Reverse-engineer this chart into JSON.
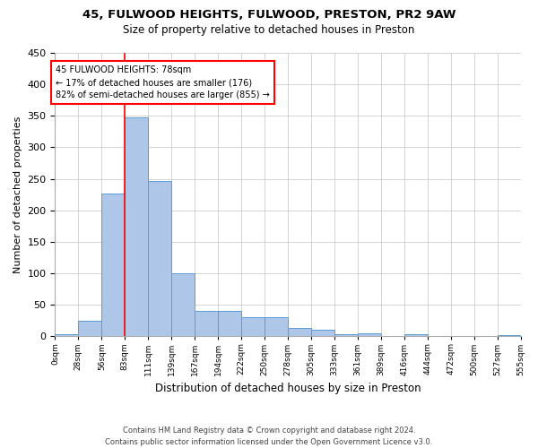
{
  "title1": "45, FULWOOD HEIGHTS, FULWOOD, PRESTON, PR2 9AW",
  "title2": "Size of property relative to detached houses in Preston",
  "xlabel": "Distribution of detached houses by size in Preston",
  "ylabel": "Number of detached properties",
  "bar_values": [
    3,
    25,
    227,
    347,
    246,
    100,
    41,
    41,
    30,
    30,
    14,
    10,
    4,
    5,
    0,
    4,
    0,
    0,
    0,
    2
  ],
  "bar_labels": [
    "0sqm",
    "28sqm",
    "56sqm",
    "83sqm",
    "111sqm",
    "139sqm",
    "167sqm",
    "194sqm",
    "222sqm",
    "250sqm",
    "278sqm",
    "305sqm",
    "333sqm",
    "361sqm",
    "389sqm",
    "416sqm",
    "444sqm",
    "472sqm",
    "500sqm",
    "527sqm",
    "555sqm"
  ],
  "bar_color": "#aec6e8",
  "bar_edge_color": "#5b9bd5",
  "annotation_line1": "45 FULWOOD HEIGHTS: 78sqm",
  "annotation_line2": "← 17% of detached houses are smaller (176)",
  "annotation_line3": "82% of semi-detached houses are larger (855) →",
  "vline_x_bin": 2,
  "ylim_max": 450,
  "yticks": [
    0,
    50,
    100,
    150,
    200,
    250,
    300,
    350,
    400,
    450
  ],
  "footer1": "Contains HM Land Registry data © Crown copyright and database right 2024.",
  "footer2": "Contains public sector information licensed under the Open Government Licence v3.0.",
  "bin_width": 28,
  "n_bins": 20
}
